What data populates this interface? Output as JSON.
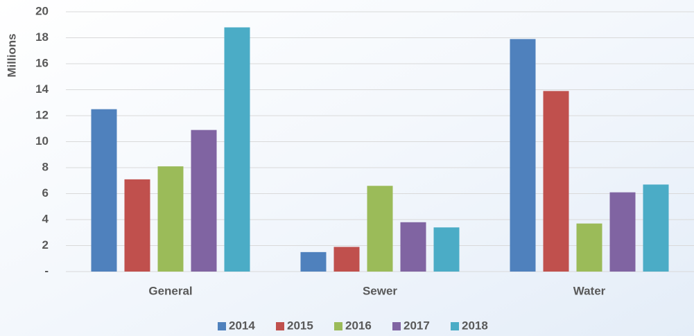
{
  "chart_data": {
    "type": "bar",
    "y_label": "Millions",
    "categories": [
      "General",
      "Sewer",
      "Water"
    ],
    "series": [
      {
        "name": "2014",
        "color": "#4f81bd",
        "values": [
          12.5,
          1.5,
          17.9
        ]
      },
      {
        "name": "2015",
        "color": "#c0504d",
        "values": [
          7.1,
          1.9,
          13.9
        ]
      },
      {
        "name": "2016",
        "color": "#9bbb59",
        "values": [
          8.1,
          6.6,
          3.7
        ]
      },
      {
        "name": "2017",
        "color": "#8064a2",
        "values": [
          10.9,
          3.8,
          6.1
        ]
      },
      {
        "name": "2018",
        "color": "#4bacc6",
        "values": [
          18.8,
          3.4,
          6.7
        ]
      }
    ],
    "ylim": [
      0,
      20
    ],
    "yticks": [
      {
        "value": 0,
        "label": "-"
      },
      2,
      4,
      6,
      8,
      10,
      12,
      14,
      16,
      18,
      20
    ],
    "grid": true,
    "legend": "bottom"
  }
}
